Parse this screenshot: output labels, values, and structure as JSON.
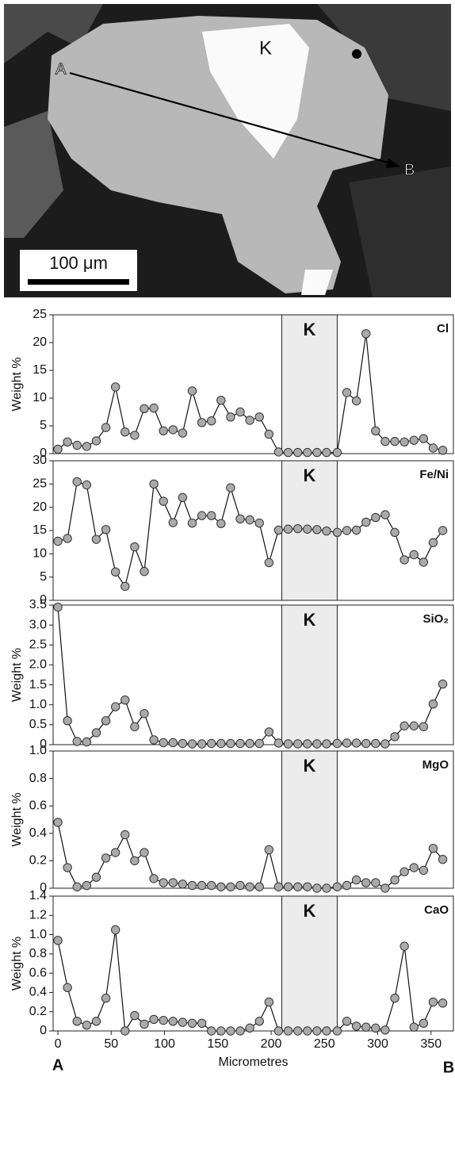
{
  "micrograph": {
    "point_a": "A",
    "point_b": "B",
    "region": "K",
    "scale_bar": "100 μm"
  },
  "chart_data": [
    {
      "type": "line",
      "label": "Cl",
      "annotation": "K",
      "ylabel": "Weight %",
      "shaded_range": [
        210,
        262
      ],
      "xlim": [
        -4.5,
        371
      ],
      "ylim": [
        0,
        25
      ],
      "yticks": [
        0,
        5,
        10,
        15,
        20,
        25
      ],
      "x": [
        0,
        9,
        18,
        27,
        36,
        45,
        54,
        63,
        72,
        81,
        90,
        99,
        108,
        117,
        126,
        135,
        144,
        153,
        162,
        171,
        180,
        189,
        198,
        207,
        216,
        225,
        234,
        243,
        252,
        262,
        271,
        280,
        289,
        298,
        307,
        316,
        325,
        334,
        343,
        352,
        361
      ],
      "series": [
        {
          "color": "#aaaaaa",
          "values": [
            0.8,
            2.1,
            1.5,
            1.3,
            2.3,
            4.7,
            12,
            3.9,
            3.3,
            8.1,
            8.2,
            4.1,
            4.3,
            3.7,
            11.3,
            5.6,
            5.9,
            9.6,
            6.6,
            7.5,
            6.0,
            6.6,
            3.5,
            0.3,
            0.2,
            0.2,
            0.2,
            0.2,
            0.2,
            0.2,
            11,
            9.5,
            21.6,
            4.1,
            2.2,
            2.2,
            2.1,
            2.4,
            2.7,
            1.0,
            0.6
          ]
        }
      ]
    },
    {
      "type": "line",
      "label": "Fe/Ni",
      "annotation": "K",
      "shaded_range": [
        210,
        262
      ],
      "xlim": [
        -4.5,
        371
      ],
      "ylim": [
        0,
        30
      ],
      "yticks": [
        0,
        5,
        10,
        15,
        20,
        25,
        30
      ],
      "x": [
        0,
        9,
        18,
        27,
        36,
        45,
        54,
        63,
        72,
        81,
        90,
        99,
        108,
        117,
        126,
        135,
        144,
        153,
        162,
        171,
        180,
        189,
        198,
        207,
        216,
        225,
        234,
        243,
        252,
        262,
        271,
        280,
        289,
        298,
        307,
        316,
        325,
        334,
        343,
        352,
        361
      ],
      "series": [
        {
          "color": "#aaaaaa",
          "values": [
            12.7,
            13.3,
            25.5,
            24.8,
            13.1,
            15.2,
            6.1,
            3.0,
            11.5,
            6.2,
            25.0,
            21.3,
            16.7,
            22.1,
            16.6,
            18.2,
            18.2,
            16.5,
            24.2,
            17.5,
            17.3,
            16.6,
            8.1,
            15.1,
            15.3,
            15.4,
            15.3,
            15.2,
            14.9,
            14.6,
            15.0,
            15.1,
            16.8,
            17.8,
            18.4,
            14.6,
            8.7,
            9.8,
            8.2,
            12.4,
            15.0
          ]
        }
      ]
    },
    {
      "type": "line",
      "label": "SiO₂",
      "annotation": "K",
      "ylabel": "Weight %",
      "shaded_range": [
        210,
        262
      ],
      "xlim": [
        -4.5,
        371
      ],
      "ylim": [
        0,
        3.5
      ],
      "yticks": [
        0,
        0.5,
        {
          "value": 1,
          "label": "1.0"
        },
        1.5,
        {
          "value": 2,
          "label": "2.0"
        },
        2.5,
        {
          "value": 3,
          "label": "3.0"
        },
        3.5
      ],
      "x": [
        0,
        9,
        18,
        27,
        36,
        45,
        54,
        63,
        72,
        81,
        90,
        99,
        108,
        117,
        126,
        135,
        144,
        153,
        162,
        171,
        180,
        189,
        198,
        207,
        216,
        225,
        234,
        243,
        252,
        262,
        271,
        280,
        289,
        298,
        307,
        316,
        325,
        334,
        343,
        352,
        361
      ],
      "series": [
        {
          "color": "#aaaaaa",
          "values": [
            3.45,
            0.6,
            0.08,
            0.07,
            0.3,
            0.6,
            0.95,
            1.12,
            0.45,
            0.78,
            0.12,
            0.05,
            0.05,
            0.03,
            0.02,
            0.02,
            0.03,
            0.03,
            0.03,
            0.03,
            0.03,
            0.03,
            0.32,
            0.04,
            0.02,
            0.02,
            0.02,
            0.02,
            0.02,
            0.03,
            0.04,
            0.04,
            0.03,
            0.03,
            0.02,
            0.2,
            0.47,
            0.47,
            0.45,
            1.02,
            1.52
          ]
        }
      ]
    },
    {
      "type": "line",
      "label": "MgO",
      "annotation": "K",
      "ylabel": "Weight %",
      "shaded_range": [
        210,
        262
      ],
      "xlim": [
        -4.5,
        371
      ],
      "ylim": [
        0,
        1
      ],
      "yticks": [
        0,
        0.2,
        0.4,
        0.6,
        0.8,
        {
          "value": 1,
          "label": "1.0"
        }
      ],
      "x": [
        0,
        9,
        18,
        27,
        36,
        45,
        54,
        63,
        72,
        81,
        90,
        99,
        108,
        117,
        126,
        135,
        144,
        153,
        162,
        171,
        180,
        189,
        198,
        207,
        216,
        225,
        234,
        243,
        252,
        262,
        271,
        280,
        289,
        298,
        307,
        316,
        325,
        334,
        343,
        352,
        361
      ],
      "series": [
        {
          "color": "#aaaaaa",
          "values": [
            0.48,
            0.15,
            0.01,
            0.02,
            0.08,
            0.22,
            0.26,
            0.39,
            0.2,
            0.26,
            0.07,
            0.04,
            0.04,
            0.03,
            0.02,
            0.02,
            0.02,
            0.01,
            0.01,
            0.02,
            0.01,
            0.01,
            0.28,
            0.01,
            0.01,
            0.01,
            0.01,
            0,
            0,
            0.01,
            0.02,
            0.06,
            0.04,
            0.04,
            0,
            0.06,
            0.12,
            0.15,
            0.13,
            0.29,
            0.21
          ]
        }
      ]
    },
    {
      "type": "line",
      "label": "CaO",
      "annotation": "K",
      "ylabel": "Weight %",
      "shaded_range": [
        210,
        262
      ],
      "xlabel": "Micrometres",
      "start_label": "A",
      "end_label": "B",
      "xlim": [
        -4.5,
        371
      ],
      "xticks": [
        0,
        50,
        100,
        150,
        200,
        250,
        300,
        350
      ],
      "ylim": [
        0,
        1.4
      ],
      "yticks": [
        0,
        0.2,
        0.4,
        0.6,
        0.8,
        {
          "value": 1,
          "label": "1.0"
        },
        1.2,
        1.4
      ],
      "x": [
        0,
        9,
        18,
        27,
        36,
        45,
        54,
        63,
        72,
        81,
        90,
        99,
        108,
        117,
        126,
        135,
        144,
        153,
        162,
        171,
        180,
        189,
        198,
        207,
        216,
        225,
        234,
        243,
        252,
        262,
        271,
        280,
        289,
        298,
        307,
        316,
        325,
        334,
        343,
        352,
        361
      ],
      "series": [
        {
          "color": "#aaaaaa",
          "values": [
            0.94,
            0.45,
            0.1,
            0.06,
            0.1,
            0.34,
            1.05,
            0,
            0.16,
            0.07,
            0.12,
            0.11,
            0.1,
            0.09,
            0.08,
            0.08,
            0,
            0,
            0,
            0,
            0.03,
            0.1,
            0.3,
            0,
            0,
            0,
            0,
            0,
            0,
            0,
            0.1,
            0.05,
            0.04,
            0.03,
            0.01,
            0.34,
            0.88,
            0.04,
            0.08,
            0.3,
            0.29
          ]
        }
      ]
    }
  ]
}
